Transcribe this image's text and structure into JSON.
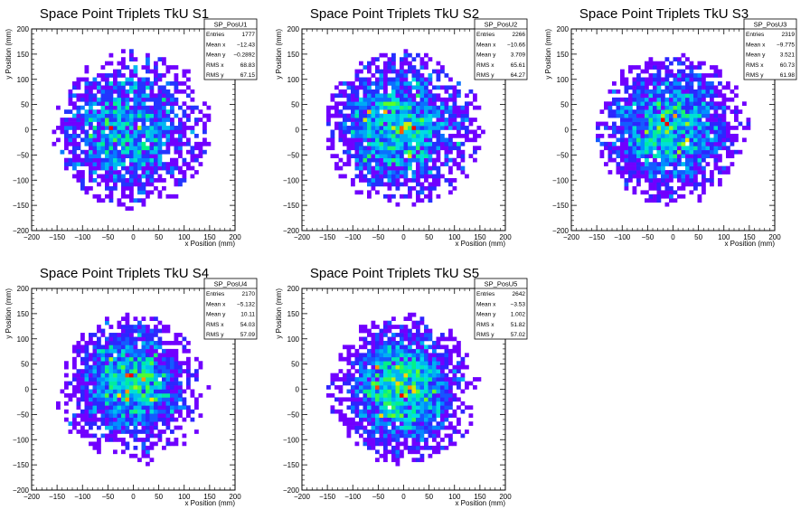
{
  "chart_data": [
    {
      "type": "heatmap",
      "title": "Space Point Triplets TkU S1",
      "xlabel": "x Position (mm)",
      "ylabel": "y Position (mm)",
      "xlim": [
        -200,
        200
      ],
      "ylim": [
        -200,
        200
      ],
      "xticks": [
        -200,
        -150,
        -100,
        -50,
        0,
        50,
        100,
        150,
        200
      ],
      "yticks": [
        -200,
        -150,
        -100,
        -50,
        0,
        50,
        100,
        150,
        200
      ],
      "stats": {
        "name": "SP_PosU1",
        "rows": [
          {
            "label": "Entries",
            "value": "1777"
          },
          {
            "label": "Mean x",
            "value": "−12.43"
          },
          {
            "label": "Mean y",
            "value": "−0.2892"
          },
          {
            "label": "RMS x",
            "value": "68.83"
          },
          {
            "label": "RMS y",
            "value": "67.15"
          }
        ]
      },
      "entries": 1777,
      "mean_x": -12.43,
      "mean_y": -0.2892,
      "rms_x": 68.83,
      "rms_y": 67.15,
      "radius": 155,
      "grid": false,
      "colormap": "rainbow"
    },
    {
      "type": "heatmap",
      "title": "Space Point Triplets TkU S2",
      "xlabel": "x Position (mm)",
      "ylabel": "y Position (mm)",
      "xlim": [
        -200,
        200
      ],
      "ylim": [
        -200,
        200
      ],
      "xticks": [
        -200,
        -150,
        -100,
        -50,
        0,
        50,
        100,
        150,
        200
      ],
      "yticks": [
        -200,
        -150,
        -100,
        -50,
        0,
        50,
        100,
        150,
        200
      ],
      "stats": {
        "name": "SP_PosU2",
        "rows": [
          {
            "label": "Entries",
            "value": "2266"
          },
          {
            "label": "Mean x",
            "value": "−10.66"
          },
          {
            "label": "Mean y",
            "value": "3.709"
          },
          {
            "label": "RMS x",
            "value": "65.61"
          },
          {
            "label": "RMS y",
            "value": "64.27"
          }
        ]
      },
      "entries": 2266,
      "mean_x": -10.66,
      "mean_y": 3.709,
      "rms_x": 65.61,
      "rms_y": 64.27,
      "radius": 155,
      "grid": false,
      "colormap": "rainbow"
    },
    {
      "type": "heatmap",
      "title": "Space Point Triplets TkU S3",
      "xlabel": "x Position (mm)",
      "ylabel": "y Position (mm)",
      "xlim": [
        -200,
        200
      ],
      "ylim": [
        -200,
        200
      ],
      "xticks": [
        -200,
        -150,
        -100,
        -50,
        0,
        50,
        100,
        150,
        200
      ],
      "yticks": [
        -200,
        -150,
        -100,
        -50,
        0,
        50,
        100,
        150,
        200
      ],
      "stats": {
        "name": "SP_PosU3",
        "rows": [
          {
            "label": "Entries",
            "value": "2319"
          },
          {
            "label": "Mean x",
            "value": "−9.775"
          },
          {
            "label": "Mean y",
            "value": "3.521"
          },
          {
            "label": "RMS x",
            "value": "60.73"
          },
          {
            "label": "RMS y",
            "value": "61.98"
          }
        ]
      },
      "entries": 2319,
      "mean_x": -9.775,
      "mean_y": 3.521,
      "rms_x": 60.73,
      "rms_y": 61.98,
      "radius": 150,
      "grid": false,
      "colormap": "rainbow"
    },
    {
      "type": "heatmap",
      "title": "Space Point Triplets TkU S4",
      "xlabel": "x Position (mm)",
      "ylabel": "y Position (mm)",
      "xlim": [
        -200,
        200
      ],
      "ylim": [
        -200,
        200
      ],
      "xticks": [
        -200,
        -150,
        -100,
        -50,
        0,
        50,
        100,
        150,
        200
      ],
      "yticks": [
        -200,
        -150,
        -100,
        -50,
        0,
        50,
        100,
        150,
        200
      ],
      "stats": {
        "name": "SP_PosU4",
        "rows": [
          {
            "label": "Entries",
            "value": "2170"
          },
          {
            "label": "Mean x",
            "value": "−5.132"
          },
          {
            "label": "Mean y",
            "value": "10.11"
          },
          {
            "label": "RMS x",
            "value": "54.03"
          },
          {
            "label": "RMS y",
            "value": "57.09"
          }
        ]
      },
      "entries": 2170,
      "mean_x": -5.132,
      "mean_y": 10.11,
      "rms_x": 54.03,
      "rms_y": 57.09,
      "radius": 150,
      "grid": false,
      "colormap": "rainbow"
    },
    {
      "type": "heatmap",
      "title": "Space Point Triplets TkU S5",
      "xlabel": "x Position (mm)",
      "ylabel": "y Position (mm)",
      "xlim": [
        -200,
        200
      ],
      "ylim": [
        -200,
        200
      ],
      "xticks": [
        -200,
        -150,
        -100,
        -50,
        0,
        50,
        100,
        150,
        200
      ],
      "yticks": [
        -200,
        -150,
        -100,
        -50,
        0,
        50,
        100,
        150,
        200
      ],
      "stats": {
        "name": "SP_PosU5",
        "rows": [
          {
            "label": "Entries",
            "value": "2642"
          },
          {
            "label": "Mean x",
            "value": "−3.53"
          },
          {
            "label": "Mean y",
            "value": "1.002"
          },
          {
            "label": "RMS x",
            "value": "51.82"
          },
          {
            "label": "RMS y",
            "value": "57.02"
          }
        ]
      },
      "entries": 2642,
      "mean_x": -3.53,
      "mean_y": 1.002,
      "rms_x": 51.82,
      "rms_y": 57.02,
      "radius": 150,
      "grid": false,
      "colormap": "rainbow"
    }
  ]
}
